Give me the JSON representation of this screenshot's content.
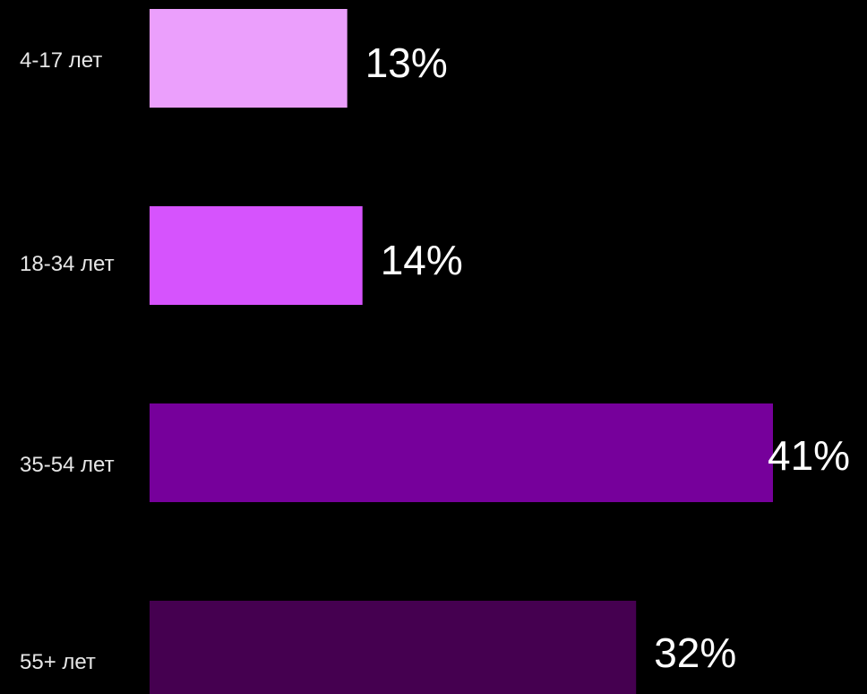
{
  "chart_data": {
    "type": "bar",
    "orientation": "horizontal",
    "categories": [
      "4-17 лет",
      "18-34 лет",
      "35-54 лет",
      "55+ лет"
    ],
    "values": [
      13,
      14,
      41,
      32
    ],
    "value_labels": [
      "13%",
      "14%",
      "41%",
      "32%"
    ],
    "colors": [
      "#eb9ffc",
      "#d653fd",
      "#76009b",
      "#450050"
    ],
    "title": "",
    "xlabel": "",
    "ylabel": "",
    "xlim": [
      0,
      41
    ],
    "grid": false,
    "legend": "none"
  }
}
